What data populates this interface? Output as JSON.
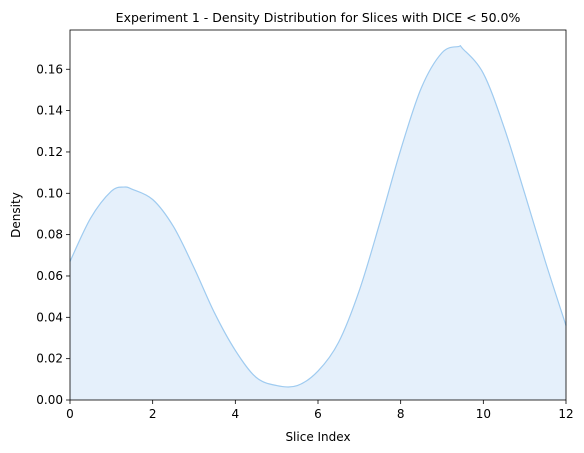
{
  "chart_data": {
    "type": "area",
    "title": "Experiment 1 - Density Distribution for Slices with DICE < 50.0%",
    "xlabel": "Slice Index",
    "ylabel": "Density",
    "xlim": [
      0,
      12
    ],
    "ylim": [
      0,
      0.179
    ],
    "xticks": [
      0,
      2,
      4,
      6,
      8,
      10,
      12
    ],
    "xtick_labels": [
      "0",
      "2",
      "4",
      "6",
      "8",
      "10",
      "12"
    ],
    "yticks": [
      0,
      0.02,
      0.04,
      0.06,
      0.08,
      0.1,
      0.12,
      0.14,
      0.16
    ],
    "ytick_labels": [
      "0.00",
      "0.02",
      "0.04",
      "0.06",
      "0.08",
      "0.10",
      "0.12",
      "0.14",
      "0.16"
    ],
    "grid": false,
    "colors": {
      "line": "#9fcbf0",
      "fill": "#e5f0fb"
    },
    "series": [
      {
        "x": [
          0,
          0.5,
          1,
          1.3,
          1.5,
          2,
          2.5,
          3,
          3.5,
          4,
          4.5,
          5,
          5.5,
          6,
          6.5,
          7,
          7.5,
          8,
          8.5,
          9,
          9.4,
          9.5,
          10,
          10.5,
          11,
          11.5,
          12
        ],
        "y": [
          0.067,
          0.088,
          0.101,
          0.103,
          0.102,
          0.097,
          0.084,
          0.064,
          0.042,
          0.024,
          0.011,
          0.007,
          0.007,
          0.014,
          0.028,
          0.053,
          0.086,
          0.121,
          0.151,
          0.168,
          0.171,
          0.17,
          0.158,
          0.132,
          0.1,
          0.067,
          0.036
        ]
      }
    ]
  }
}
